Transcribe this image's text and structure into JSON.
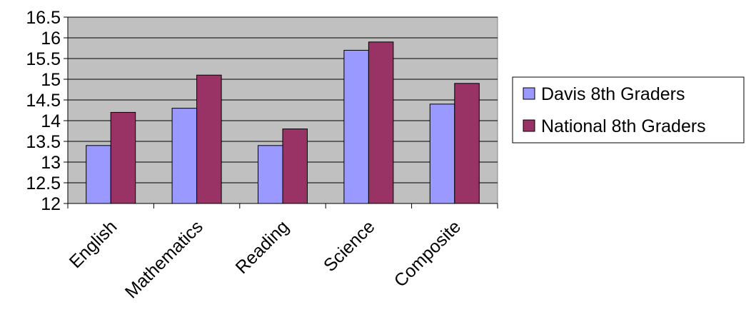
{
  "chart_data": {
    "type": "bar",
    "categories": [
      "English",
      "Mathematics",
      "Reading",
      "Science",
      "Composite"
    ],
    "series": [
      {
        "name": "Davis 8th Graders",
        "values": [
          13.4,
          14.3,
          13.4,
          15.7,
          14.4
        ],
        "color": "#9999ff"
      },
      {
        "name": "National 8th Graders",
        "values": [
          14.2,
          15.1,
          13.8,
          15.9,
          14.9
        ],
        "color": "#993366"
      }
    ],
    "ylim": [
      12,
      16.5
    ],
    "yticks": [
      "12",
      "12.5",
      "13",
      "13.5",
      "14",
      "14.5",
      "15",
      "15.5",
      "16",
      "16.5"
    ],
    "grid": true,
    "plot_background": "#c0c0c0",
    "legend_position": "right"
  }
}
